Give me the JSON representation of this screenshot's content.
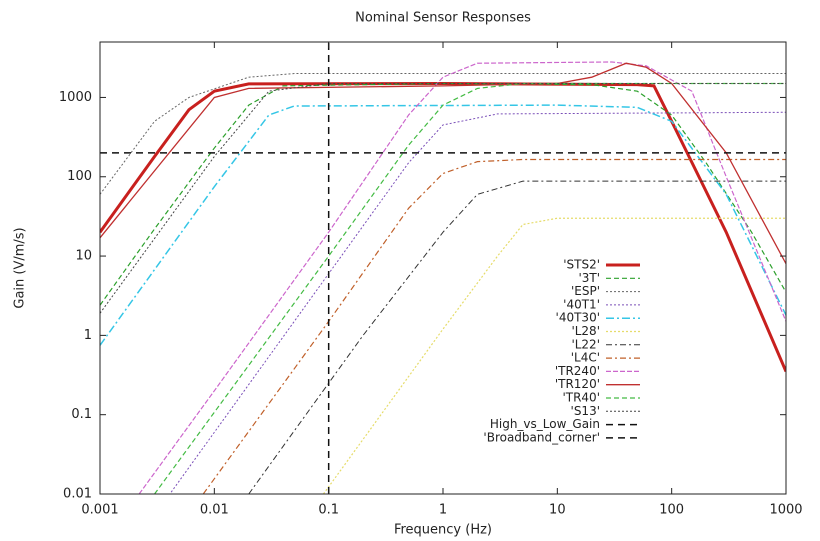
{
  "chart_data": {
    "type": "line",
    "title": "Nominal Sensor Responses",
    "xlabel": "Frequency (Hz)",
    "ylabel": "Gain (V/m/s)",
    "xscale": "log",
    "yscale": "log",
    "xlim": [
      0.001,
      1000
    ],
    "ylim": [
      0.01,
      5000
    ],
    "xticks": [
      0.001,
      0.01,
      0.1,
      1,
      10,
      100,
      1000
    ],
    "yticks": [
      0.01,
      0.1,
      1,
      10,
      100,
      1000
    ],
    "legend": "right",
    "series": [
      {
        "name": "'STS2'",
        "color": "#c8201e",
        "width": 3,
        "dash": "none",
        "x": [
          0.001,
          0.003,
          0.006,
          0.01,
          0.02,
          1,
          50,
          70,
          100,
          300,
          1000
        ],
        "values": [
          20,
          180,
          700,
          1200,
          1480,
          1500,
          1450,
          1400,
          500,
          20,
          0.35
        ]
      },
      {
        "name": "'3T'",
        "color": "#2ca02c",
        "width": 1.2,
        "dash": "5,3",
        "x": [
          0.001,
          0.003,
          0.01,
          0.02,
          0.04,
          1,
          20,
          50,
          100,
          200,
          500,
          1000
        ],
        "values": [
          2.4,
          22,
          230,
          800,
          1400,
          1500,
          1450,
          1200,
          600,
          150,
          20,
          3.5
        ]
      },
      {
        "name": "'ESP'",
        "color": "#666666",
        "width": 1,
        "dash": "2,2",
        "x": [
          0.001,
          0.003,
          0.006,
          0.02,
          0.05,
          1000
        ],
        "values": [
          60,
          500,
          1000,
          1800,
          2000,
          2000
        ]
      },
      {
        "name": "'40T1'",
        "color": "#7a4fb8",
        "width": 1,
        "dash": "2,2",
        "x": [
          0.004,
          0.1,
          0.5,
          1,
          3,
          1000
        ],
        "values": [
          0.0096,
          6,
          150,
          450,
          620,
          650
        ]
      },
      {
        "name": "'40T30'",
        "color": "#35c6e6",
        "width": 1.5,
        "dash": "8,3,2,3",
        "x": [
          0.001,
          0.01,
          0.03,
          0.05,
          10,
          50,
          100,
          300,
          1000
        ],
        "values": [
          0.75,
          75,
          600,
          780,
          800,
          750,
          500,
          60,
          1.8
        ]
      },
      {
        "name": "'L28'",
        "color": "#e6dc6a",
        "width": 1.2,
        "dash": "2,2",
        "x": [
          0.09,
          1,
          3,
          5,
          10,
          1000
        ],
        "values": [
          0.01,
          1.2,
          10,
          25,
          30,
          30
        ]
      },
      {
        "name": "'L22'",
        "color": "#333333",
        "width": 1,
        "dash": "6,3,2,3",
        "x": [
          0.02,
          0.2,
          1,
          2,
          5,
          1000
        ],
        "values": [
          0.01,
          1,
          20,
          60,
          88,
          88
        ]
      },
      {
        "name": "'L4C'",
        "color": "#c0602a",
        "width": 1.2,
        "dash": "6,3,2,3",
        "x": [
          0.008,
          0.1,
          0.5,
          1,
          2,
          5,
          1000
        ],
        "values": [
          0.01,
          1.5,
          40,
          110,
          155,
          165,
          165
        ]
      },
      {
        "name": "'TR240'",
        "color": "#cc66cc",
        "width": 1.2,
        "dash": "5,2",
        "x": [
          0.0022,
          0.01,
          0.1,
          0.5,
          1,
          2,
          30,
          60,
          150,
          300,
          1000
        ],
        "values": [
          0.01,
          0.2,
          20,
          600,
          1800,
          2700,
          2800,
          2500,
          1200,
          100,
          1.5
        ]
      },
      {
        "name": "'TR120'",
        "color": "#c03030",
        "width": 1.3,
        "dash": "none",
        "x": [
          0.001,
          0.01,
          0.02,
          1,
          10,
          20,
          40,
          60,
          100,
          300,
          1000
        ],
        "values": [
          17,
          1000,
          1300,
          1400,
          1500,
          1800,
          2700,
          2400,
          1500,
          200,
          8
        ]
      },
      {
        "name": "'TR40'",
        "color": "#44bb44",
        "width": 1.2,
        "dash": "5,3",
        "x": [
          0.003,
          0.1,
          0.5,
          1,
          2,
          5,
          1000
        ],
        "values": [
          0.01,
          10,
          250,
          800,
          1300,
          1500,
          1500
        ]
      },
      {
        "name": "'S13'",
        "color": "#444444",
        "width": 1,
        "dash": "2,2",
        "x": [
          0.001,
          0.01,
          0.03,
          0.1,
          1000
        ],
        "values": [
          1.9,
          180,
          1200,
          1500,
          1500
        ]
      },
      {
        "name": "High_vs_Low_Gain",
        "color": "#111111",
        "width": 1.5,
        "dash": "7,5",
        "x": [
          0.001,
          1000
        ],
        "values": [
          200,
          200
        ]
      },
      {
        "name": "'Broadband_corner'",
        "color": "#111111",
        "width": 1.5,
        "dash": "7,5",
        "x": [
          0.1,
          0.1
        ],
        "values": [
          0.01,
          5000
        ]
      }
    ]
  }
}
